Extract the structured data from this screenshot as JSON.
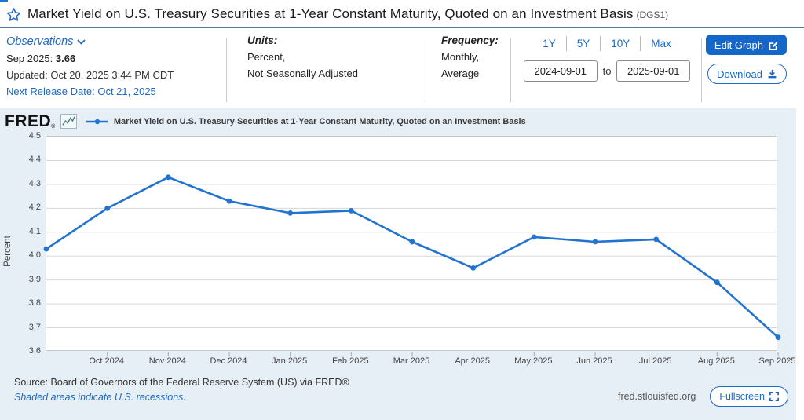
{
  "page": {
    "title": "Market Yield on U.S. Treasury Securities at 1-Year Constant Maturity, Quoted on an Investment Basis",
    "title_suffix": "(DGS1)"
  },
  "meta": {
    "observations": {
      "label": "Observations",
      "latest_label": "Sep 2025:",
      "latest_value": "3.66",
      "updated": "Updated: Oct 20, 2025 3:44 PM CDT",
      "next_release": "Next Release Date: Oct 21, 2025"
    },
    "units": {
      "label": "Units:",
      "line1": "Percent,",
      "line2": "Not Seasonally Adjusted"
    },
    "frequency": {
      "label": "Frequency:",
      "line1": "Monthly,",
      "line2": "Average"
    },
    "range": {
      "presets": [
        "1Y",
        "5Y",
        "10Y",
        "Max"
      ],
      "start_date": "2024-09-01",
      "to_label": "to",
      "end_date": "2025-09-01"
    },
    "actions": {
      "edit_graph": "Edit Graph",
      "download": "Download"
    }
  },
  "chart_header": {
    "logo": "FRED",
    "logo_reg": "®",
    "legend": "Market Yield on U.S. Treasury Securities at 1-Year Constant Maturity, Quoted on an Investment Basis"
  },
  "chart_data": {
    "type": "line",
    "title": "Market Yield on U.S. Treasury Securities at 1-Year Constant Maturity, Quoted on an Investment Basis",
    "ylabel": "Percent",
    "ylim": [
      3.6,
      4.5
    ],
    "y_ticks": [
      "4.5",
      "4.4",
      "4.3",
      "4.2",
      "4.1",
      "4.0",
      "3.9",
      "3.8",
      "3.7",
      "3.6"
    ],
    "categories": [
      "Sep 2024",
      "Oct 2024",
      "Nov 2024",
      "Dec 2024",
      "Jan 2025",
      "Feb 2025",
      "Mar 2025",
      "Apr 2025",
      "May 2025",
      "Jun 2025",
      "Jul 2025",
      "Aug 2025",
      "Sep 2025"
    ],
    "x_tick_labels": [
      "Oct 2024",
      "Nov 2024",
      "Dec 2024",
      "Jan 2025",
      "Feb 2025",
      "Mar 2025",
      "Apr 2025",
      "May 2025",
      "Jun 2025",
      "Jul 2025",
      "Aug 2025",
      "Sep 2025"
    ],
    "values": [
      4.03,
      4.2,
      4.33,
      4.23,
      4.18,
      4.19,
      4.06,
      3.95,
      4.08,
      4.06,
      4.07,
      3.89,
      3.66
    ],
    "grid": true,
    "legend_position": "top",
    "line_color": "#2273d0",
    "grid_color": "#d7d7d7"
  },
  "footer": {
    "source": "Source: Board of Governors of the Federal Reserve System (US) via FRED®",
    "note": "Shaded areas indicate U.S. recessions.",
    "site": "fred.stlouisfed.org",
    "fullscreen": "Fullscreen"
  },
  "colors": {
    "accent_blue": "#1b69c7",
    "button_blue": "#1467c8",
    "title_divider": "#5b7a96",
    "card_bg": "#e6eef6"
  }
}
